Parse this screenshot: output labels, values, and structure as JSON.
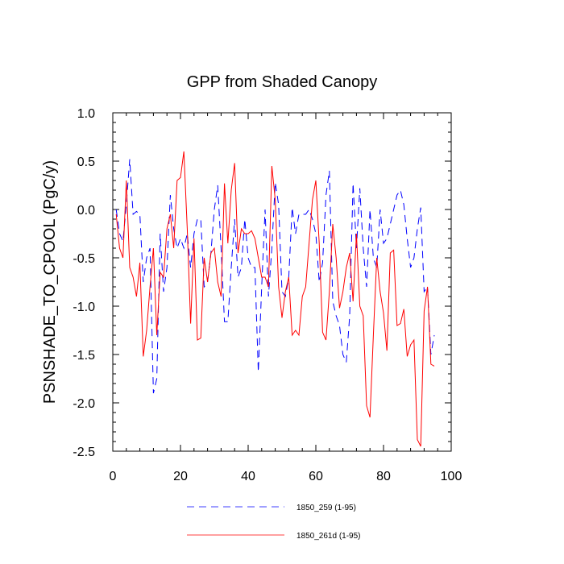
{
  "chart_data": {
    "type": "line",
    "title": "GPP from Shaded Canopy",
    "xlabel": "",
    "ylabel": "PSNSHADE_TO_CPOOL  (PgC/y)",
    "xlim": [
      0,
      100
    ],
    "ylim": [
      -2.5,
      1.0
    ],
    "xticks": [
      0,
      20,
      40,
      60,
      80,
      100
    ],
    "xtick_labels": [
      "0",
      "20",
      "40",
      "60",
      "80",
      "100"
    ],
    "yticks": [
      -2.5,
      -2.0,
      -1.5,
      -1.0,
      -0.5,
      0.0,
      0.5,
      1.0
    ],
    "ytick_labels": [
      "-2.5",
      "-2.0",
      "-1.5",
      "-1.0",
      "-0.5",
      "0.0",
      "0.5",
      "1.0"
    ],
    "grid": false,
    "legend_position": "bottom",
    "x": [
      1,
      2,
      3,
      4,
      5,
      6,
      7,
      8,
      9,
      10,
      11,
      12,
      13,
      14,
      15,
      16,
      17,
      18,
      19,
      20,
      21,
      22,
      23,
      24,
      25,
      26,
      27,
      28,
      29,
      30,
      31,
      32,
      33,
      34,
      35,
      36,
      37,
      38,
      39,
      40,
      41,
      42,
      43,
      44,
      45,
      46,
      47,
      48,
      49,
      50,
      51,
      52,
      53,
      54,
      55,
      56,
      57,
      58,
      59,
      60,
      61,
      62,
      63,
      64,
      65,
      66,
      67,
      68,
      69,
      70,
      71,
      72,
      73,
      74,
      75,
      76,
      77,
      78,
      79,
      80,
      81,
      82,
      83,
      84,
      85,
      86,
      87,
      88,
      89,
      90,
      91,
      92,
      93,
      94,
      95
    ],
    "series": [
      {
        "name": "1850_259 (1-95)",
        "color": "#0000ff",
        "dash": "dashed",
        "values": [
          0.0,
          -0.25,
          -0.33,
          0.05,
          0.52,
          -0.05,
          -0.02,
          -0.05,
          -0.75,
          -0.5,
          -0.4,
          -1.9,
          -1.75,
          -0.25,
          -0.85,
          -0.6,
          0.15,
          -0.2,
          -0.4,
          -0.3,
          -0.4,
          -0.25,
          -0.6,
          -0.25,
          -0.1,
          -0.1,
          -0.8,
          -0.75,
          -0.45,
          0.0,
          0.25,
          -0.4,
          -1.16,
          -1.16,
          -0.6,
          -0.1,
          -0.7,
          -0.6,
          -0.1,
          -0.5,
          -0.6,
          -0.6,
          -1.68,
          -0.8,
          0.0,
          -0.9,
          -0.4,
          0.28,
          0.05,
          -0.85,
          -0.9,
          -0.7,
          0.02,
          -0.25,
          -0.05,
          -0.05,
          -0.05,
          0.0,
          -0.1,
          -0.25,
          -0.75,
          -0.55,
          0.15,
          0.4,
          -0.95,
          -1.1,
          -1.2,
          -1.5,
          -1.58,
          -1.1,
          0.27,
          -0.4,
          0.22,
          -0.4,
          -0.8,
          0.0,
          -0.5,
          -0.6,
          0.0,
          -0.35,
          -0.3,
          -0.15,
          0.0,
          0.15,
          0.2,
          0.05,
          -0.3,
          -0.6,
          -0.5,
          -0.2,
          0.02,
          -0.85,
          -0.8,
          -1.5,
          -1.3
        ]
      },
      {
        "name": "1850_261d (1-95)",
        "color": "#ff0000",
        "dash": "solid",
        "values": [
          -0.05,
          -0.4,
          -0.5,
          0.3,
          -0.6,
          -0.7,
          -0.9,
          -0.55,
          -1.52,
          -1.25,
          -0.8,
          -0.4,
          -1.3,
          -0.65,
          -0.7,
          -0.2,
          -0.05,
          -0.4,
          0.3,
          0.33,
          0.6,
          -0.2,
          -1.18,
          -0.3,
          -1.35,
          -1.33,
          -0.5,
          -0.75,
          -0.45,
          -0.4,
          -0.75,
          -0.9,
          0.27,
          -0.35,
          0.2,
          0.48,
          -0.45,
          -0.2,
          -0.25,
          -0.25,
          -0.22,
          -0.3,
          -0.5,
          -0.7,
          -0.7,
          -0.8,
          0.45,
          0.1,
          -0.8,
          -1.12,
          -0.85,
          -0.7,
          -1.3,
          -1.25,
          -1.3,
          -0.9,
          -0.8,
          -0.35,
          0.1,
          0.3,
          -0.35,
          -1.27,
          -1.35,
          -0.85,
          -0.15,
          -0.5,
          -1.02,
          -0.85,
          -0.6,
          -0.45,
          -0.95,
          -0.25,
          -1.0,
          -1.1,
          -2.03,
          -2.15,
          -1.3,
          -0.5,
          -0.85,
          -1.07,
          -1.46,
          -0.45,
          -0.42,
          -1.2,
          -1.18,
          -1.03,
          -1.52,
          -1.4,
          -1.35,
          -2.38,
          -2.45,
          -1.05,
          -0.8,
          -1.6,
          -1.62
        ]
      }
    ]
  }
}
